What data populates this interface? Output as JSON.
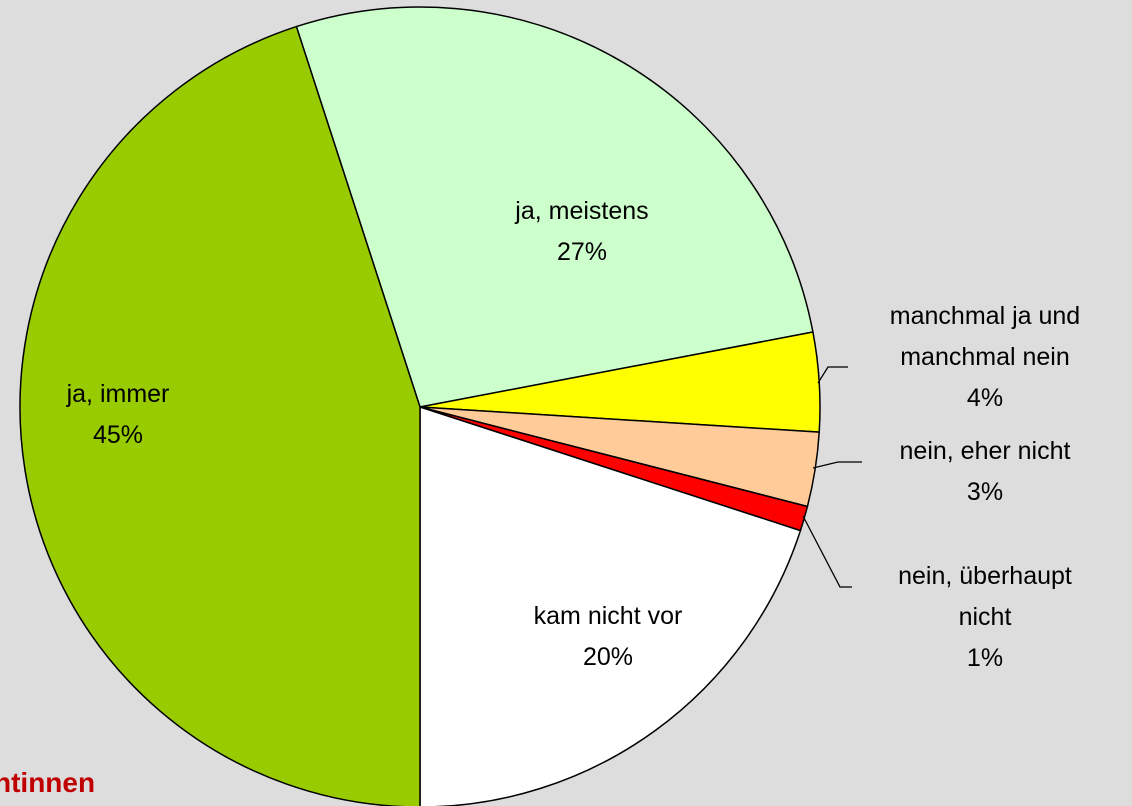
{
  "chart_data": {
    "type": "pie",
    "categories": [
      "ja, meistens",
      "manchmal ja und manchmal nein",
      "nein, eher nicht",
      "nein, überhaupt nicht",
      "kam nicht vor",
      "ja, immer"
    ],
    "values": [
      27,
      4,
      3,
      1,
      20,
      45
    ],
    "value_labels": [
      "27%",
      "4%",
      "3%",
      "1%",
      "20%",
      "45%"
    ],
    "colors": [
      "#ccffcc",
      "#ffff00",
      "#ffcc99",
      "#ff0000",
      "#ffffff",
      "#99cc00"
    ],
    "footer_text": "ntinnen"
  }
}
